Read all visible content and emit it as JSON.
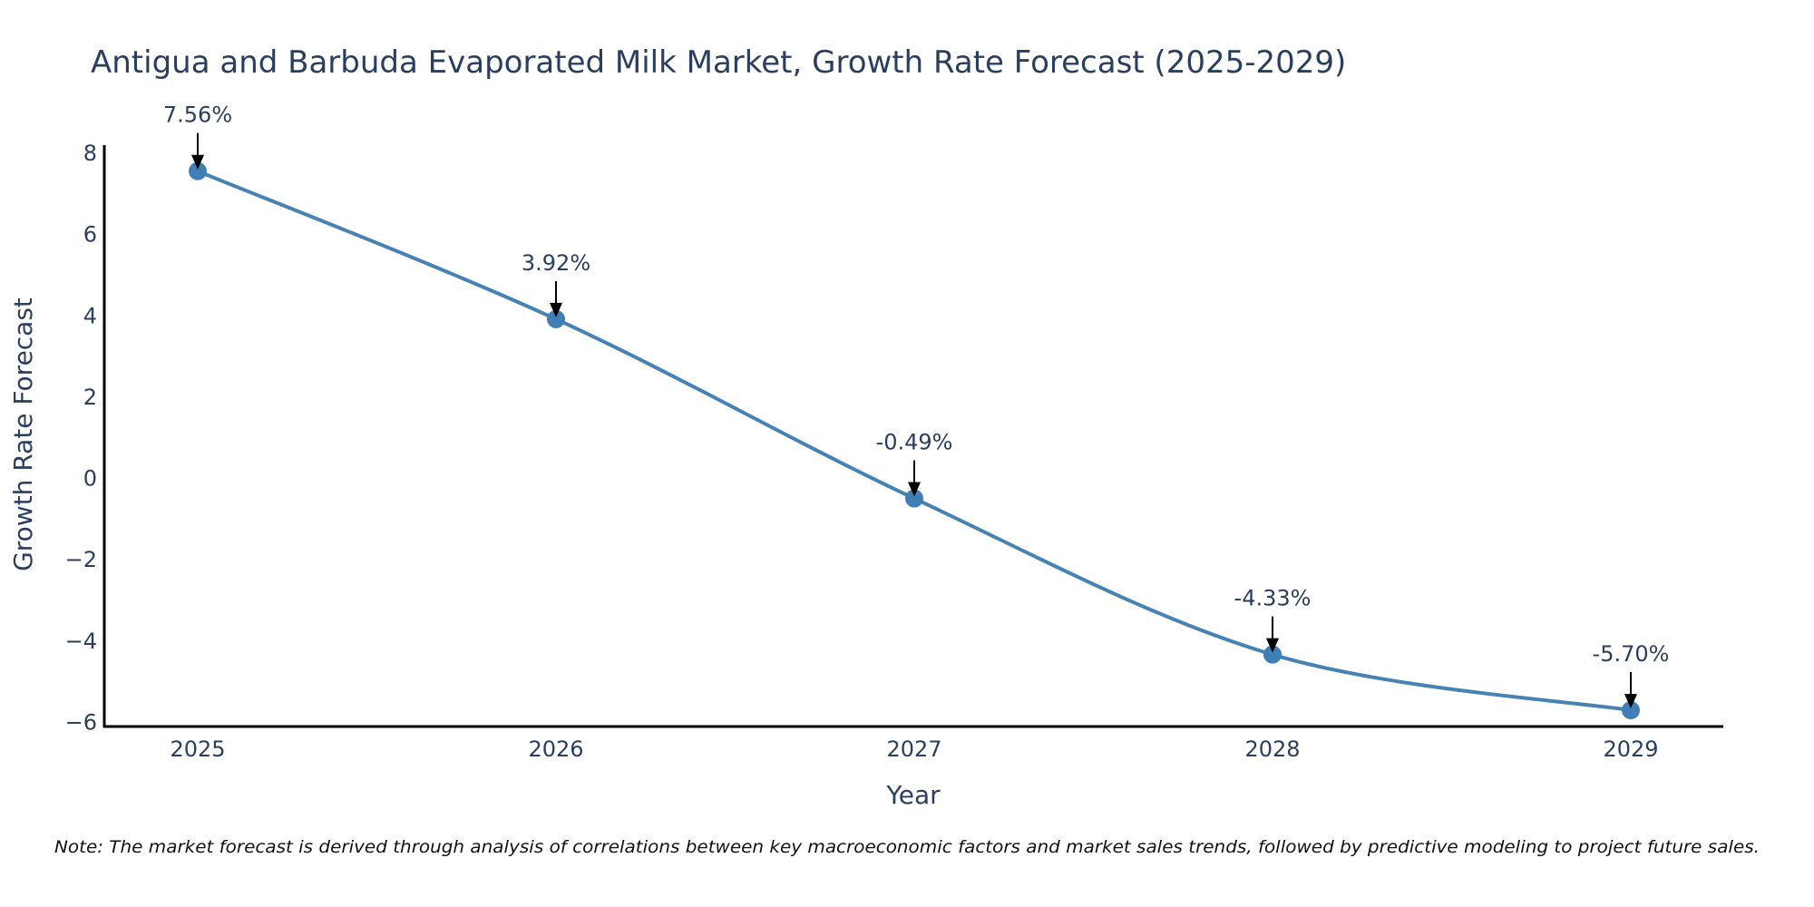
{
  "chart_data": {
    "type": "line",
    "title": "Antigua and Barbuda Evaporated Milk Market, Growth Rate Forecast (2025-2029)",
    "xlabel": "Year",
    "ylabel": "Growth Rate Forecast",
    "categories": [
      "2025",
      "2026",
      "2027",
      "2028",
      "2029"
    ],
    "values": [
      7.56,
      3.92,
      -0.49,
      -4.33,
      -5.7
    ],
    "data_labels": [
      "7.56%",
      "3.92%",
      "-0.49%",
      "-4.33%",
      "-5.70%"
    ],
    "y_ticks": [
      8,
      6,
      4,
      2,
      0,
      -2,
      -4,
      -6
    ],
    "y_tick_labels": [
      "8",
      "6",
      "4",
      "2",
      "0",
      "−2",
      "−4",
      "−6"
    ],
    "ylim": [
      -6.1,
      8.2
    ],
    "grid": false,
    "line_color": "#4682b4",
    "marker_color": "#3f7fb5",
    "arrow_color": "#000000",
    "note": "Note: The market forecast is derived through analysis of correlations between key macroeconomic factors and market sales trends, followed by predictive modeling to project future sales."
  }
}
